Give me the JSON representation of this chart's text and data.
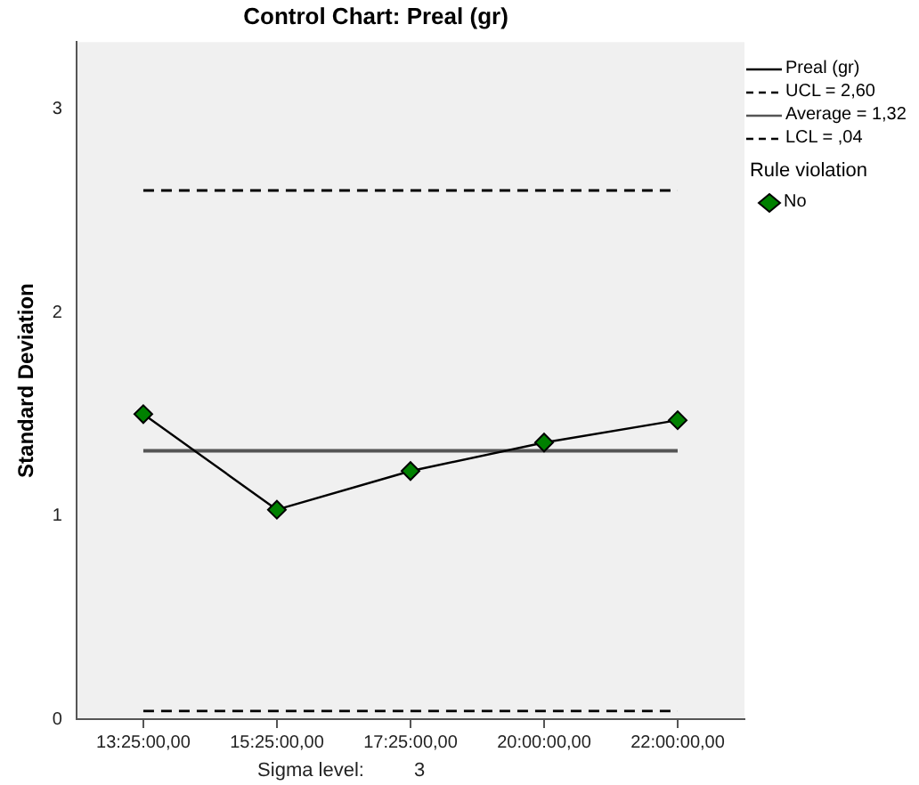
{
  "chart_data": {
    "type": "line",
    "title": "Control Chart: Preal (gr)",
    "ylabel": "Standard Deviation",
    "categories": [
      "13:25:00,00",
      "15:25:00,00",
      "17:25:00,00",
      "20:00:00,00",
      "22:00:00,00"
    ],
    "series": [
      {
        "name": "Preal (gr)",
        "type": "line",
        "color": "#000000",
        "marker": "none",
        "values": [
          1.5,
          1.03,
          1.22,
          1.36,
          1.47
        ]
      },
      {
        "name": "No",
        "type": "scatter",
        "color": "#008000",
        "marker": "diamond",
        "x": [
          "13:25:00,00",
          "15:25:00,00",
          "17:25:00,00",
          "20:00:00,00",
          "22:00:00,00"
        ],
        "values": [
          1.5,
          1.03,
          1.22,
          1.36,
          1.47
        ]
      }
    ],
    "ylim": [
      0,
      3.33
    ],
    "yticks": [
      0,
      1,
      2,
      3
    ],
    "grid": false,
    "legend": "right",
    "legend_title": "Rule violation",
    "ref_lines": [
      {
        "axis": "y",
        "value": 2.6,
        "label": "UCL = 2,60",
        "line_style": "dashed",
        "color": "#000000"
      },
      {
        "axis": "y",
        "value": 1.32,
        "label": "Average = 1,32",
        "line_style": "solid",
        "color": "#555555"
      },
      {
        "axis": "y",
        "value": 0.04,
        "label": "LCL = ,04",
        "line_style": "dashed",
        "color": "#000000"
      }
    ],
    "annotations": [
      "Sigma level:",
      "3"
    ]
  }
}
